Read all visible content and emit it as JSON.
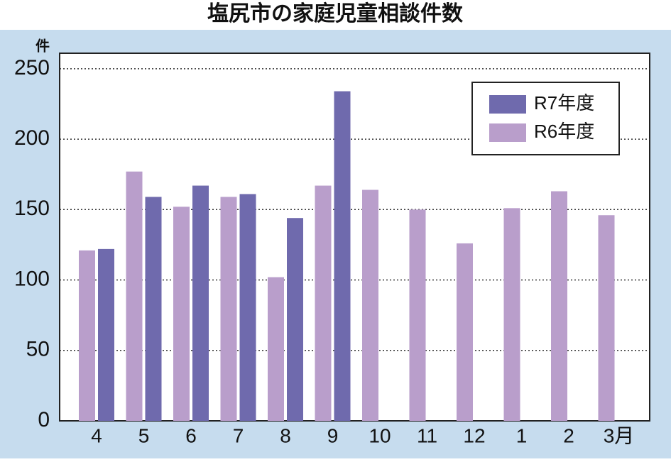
{
  "chart_data": {
    "type": "bar",
    "title": "塩尻市の家庭児童相談件数",
    "y_unit": "件",
    "categories": [
      "4",
      "5",
      "6",
      "7",
      "8",
      "9",
      "10",
      "11",
      "12",
      "1",
      "2",
      "3月"
    ],
    "series": [
      {
        "name": "R6年度",
        "color": "#b99ecb",
        "values": [
          121,
          177,
          152,
          159,
          102,
          167,
          164,
          150,
          126,
          151,
          163,
          146
        ]
      },
      {
        "name": "R7年度",
        "color": "#6f6aad",
        "values": [
          122,
          159,
          167,
          161,
          144,
          234,
          null,
          null,
          null,
          null,
          null,
          null
        ]
      }
    ],
    "legend_order": [
      1,
      0
    ],
    "legend_position": "upper right",
    "ylim": [
      0,
      261
    ],
    "yticks": [
      0,
      50,
      100,
      150,
      200,
      250
    ],
    "grid": true
  }
}
